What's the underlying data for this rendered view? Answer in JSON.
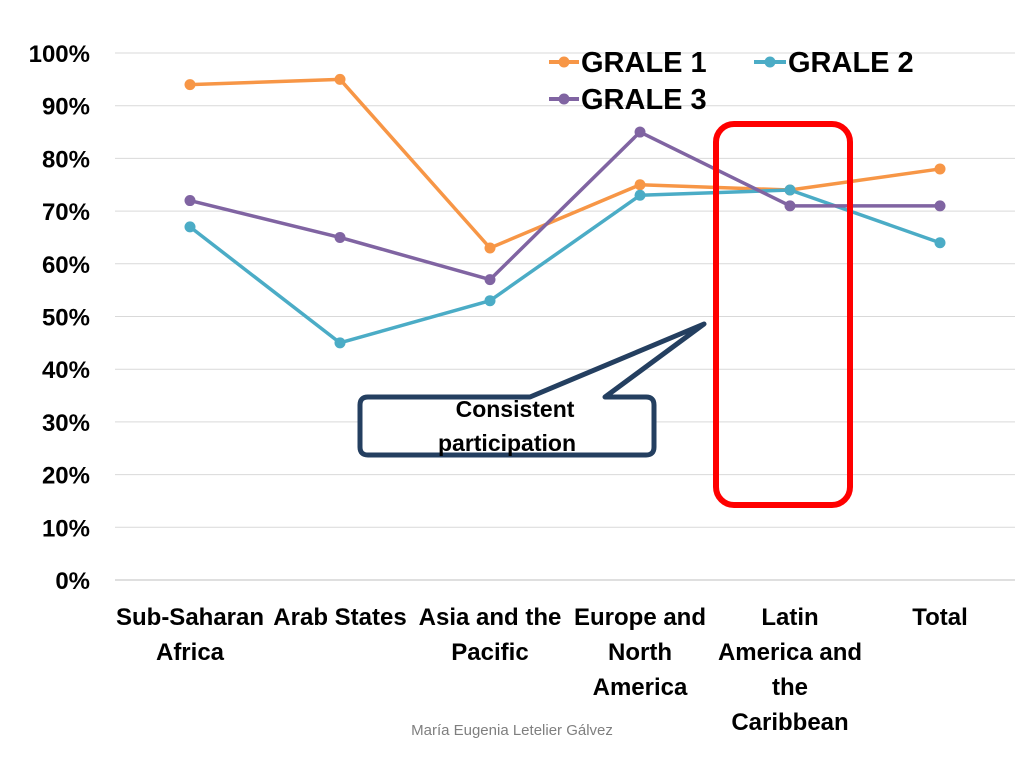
{
  "chart_data": {
    "type": "line",
    "categories": [
      [
        "Sub-Saharan",
        "Africa"
      ],
      [
        "Arab States"
      ],
      [
        "Asia and the",
        "Pacific"
      ],
      [
        "Europe and",
        "North",
        "America"
      ],
      [
        "Latin",
        "America and",
        "the",
        "Caribbean"
      ],
      [
        "Total"
      ]
    ],
    "y_tick_labels": [
      "0%",
      "10%",
      "20%",
      "30%",
      "40%",
      "50%",
      "60%",
      "70%",
      "80%",
      "90%",
      "100%"
    ],
    "ylim": [
      0,
      100
    ],
    "series": [
      {
        "name": "GRALE 1",
        "color": "#f79646",
        "values": [
          94,
          95,
          63,
          75,
          74,
          78
        ]
      },
      {
        "name": "GRALE 2",
        "color": "#4bacc6",
        "values": [
          67,
          45,
          53,
          73,
          74,
          64
        ]
      },
      {
        "name": "GRALE 3",
        "color": "#8064a2",
        "values": [
          72,
          65,
          57,
          85,
          71,
          71
        ]
      }
    ],
    "gridlines": true,
    "legend_position": "top-right",
    "annotation": {
      "text": [
        "Consistent",
        "participation"
      ],
      "points_to": "Latin America and the Caribbean",
      "box_color": "#243f60"
    },
    "highlight": {
      "category_index": 4,
      "color": "#ff0000"
    }
  },
  "footer": {
    "author": "María Eugenia Letelier Gálvez"
  }
}
